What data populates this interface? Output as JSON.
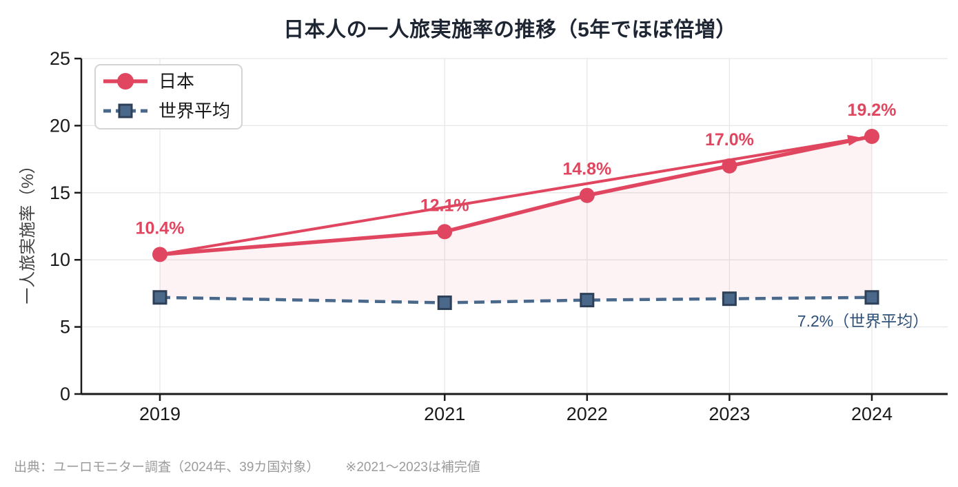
{
  "title": "日本人の一人旅実施率の推移（5年でほぼ倍増）",
  "footer": {
    "source": "出典：ユーロモニター調査（2024年、39カ国対象）",
    "note": "※2021～2023は補完値"
  },
  "colors": {
    "japan": "#e0465f",
    "world": "#4a6889",
    "world_edge": "#2e4057",
    "area_fill": "rgba(224, 70, 95, 0.07)",
    "annotation_text": "#2d5079",
    "axis_text": "#1a1a1a",
    "ylabel_text": "#3f3f3f",
    "grid": "#e7e7e7",
    "spine": "#1a1a1a",
    "legend_border": "#d4d4d4",
    "legend_bg": "#ffffff"
  },
  "chart_data": {
    "type": "line",
    "x": [
      2019,
      2021,
      2022,
      2023,
      2024
    ],
    "x_tick_labels": [
      "2019",
      "2021",
      "2022",
      "2023",
      "2024"
    ],
    "yticks": [
      0,
      5,
      10,
      15,
      20,
      25
    ],
    "ylim": [
      0,
      25
    ],
    "ylabel": "一人旅実施率（%）",
    "grid": true,
    "legend_position": "upper left",
    "series": [
      {
        "name": "日本",
        "values": [
          10.4,
          12.1,
          14.8,
          17.0,
          19.2
        ],
        "point_labels": [
          "10.4%",
          "12.1%",
          "14.8%",
          "17.0%",
          "19.2%"
        ],
        "marker": "circle",
        "line_style": "solid"
      },
      {
        "name": "世界平均",
        "values": [
          7.2,
          6.8,
          7.0,
          7.1,
          7.2
        ],
        "point_labels": [],
        "marker": "square",
        "line_style": "dashed"
      }
    ],
    "annotation": "7.2%（世界平均）",
    "arrow": {
      "from": [
        2019,
        10.4
      ],
      "to": [
        2024,
        19.2
      ]
    },
    "area_between_series": true
  }
}
